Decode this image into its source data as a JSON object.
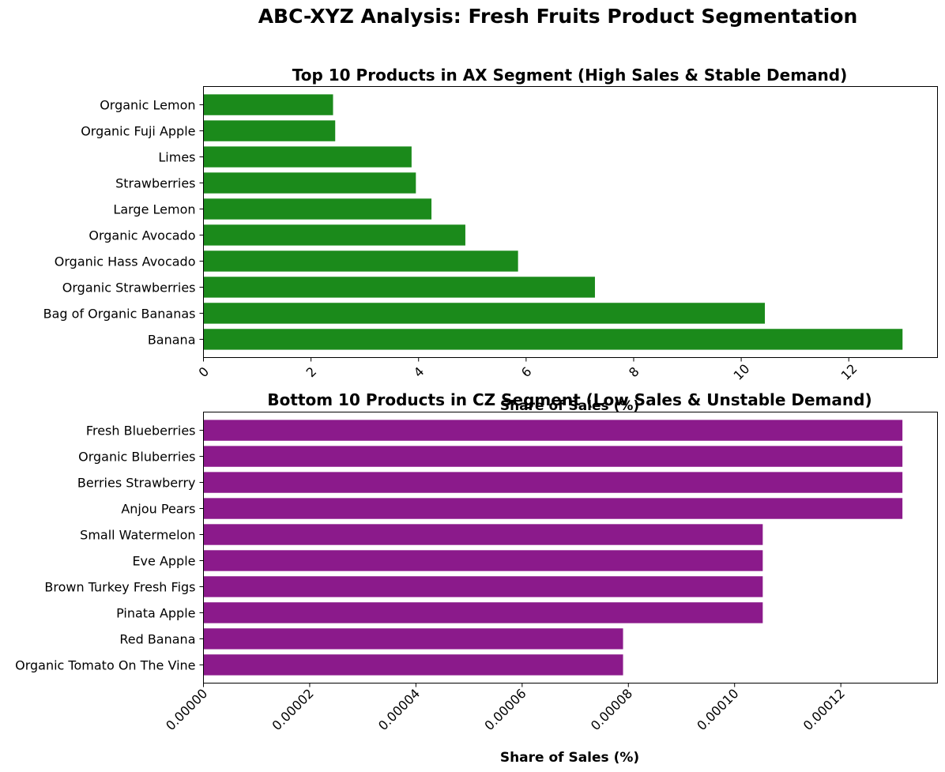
{
  "title": "ABC-XYZ Analysis: Fresh Fruits Product Segmentation",
  "chart_data": [
    {
      "type": "bar",
      "orientation": "horizontal",
      "title": "Top 10 Products in AX Segment (High Sales & Stable Demand)",
      "xlabel": "Share of Sales (%)",
      "ylabel": "",
      "xlim": [
        0,
        13.65
      ],
      "color": "#1b8a1b",
      "categories": [
        "Banana",
        "Bag of Organic Bananas",
        "Organic Strawberries",
        "Organic Hass Avocado",
        "Organic Avocado",
        "Large Lemon",
        "Strawberries",
        "Limes",
        "Organic Fuji Apple",
        "Organic Lemon"
      ],
      "values": [
        13.0,
        10.44,
        7.28,
        5.85,
        4.87,
        4.24,
        3.95,
        3.87,
        2.45,
        2.41
      ],
      "xticks": [
        0,
        2,
        4,
        6,
        8,
        10,
        12
      ],
      "xtick_labels": [
        "0",
        "2",
        "4",
        "6",
        "8",
        "10",
        "12"
      ],
      "grid": false,
      "legend": "none"
    },
    {
      "type": "bar",
      "orientation": "horizontal",
      "title": "Bottom 10 Products in CZ Segment (Low Sales & Unstable Demand)",
      "xlabel": "Share of Sales (%)",
      "ylabel": "",
      "xlim": [
        0,
        0.0001382
      ],
      "color": "#8b1a8b",
      "categories": [
        "Organic Tomato On The Vine",
        "Red Banana",
        "Pinata Apple",
        "Brown Turkey Fresh Figs",
        "Eve Apple",
        "Small Watermelon",
        "Anjou Pears",
        "Berries Strawberry",
        "Organic Bluberries",
        "Fresh Blueberries"
      ],
      "values": [
        7.9e-05,
        7.9e-05,
        0.0001053,
        0.0001053,
        0.0001053,
        0.0001053,
        0.0001316,
        0.0001316,
        0.0001316,
        0.0001316
      ],
      "xticks": [
        0,
        2e-05,
        4e-05,
        6e-05,
        8e-05,
        0.0001,
        0.00012
      ],
      "xtick_labels": [
        "0.00000",
        "0.00002",
        "0.00004",
        "0.00006",
        "0.00008",
        "0.00010",
        "0.00012"
      ],
      "grid": false,
      "legend": "none"
    }
  ]
}
